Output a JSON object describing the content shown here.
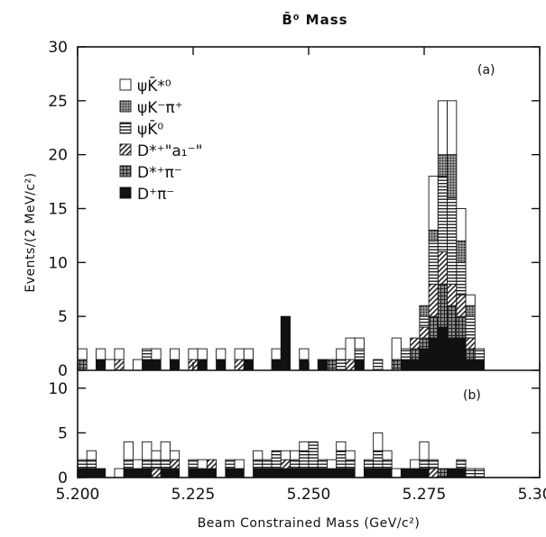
{
  "chart_data": {
    "type": "bar",
    "title": "B̄⁰ Mass",
    "xlabel": "Beam Constrained Mass (GeV/c²)",
    "ylabel": "Events/(2 MeV/c²)",
    "xlim": [
      5.2,
      5.3
    ],
    "x_ticks": [
      "5.200",
      "5.225",
      "5.250",
      "5.275",
      "5.300"
    ],
    "x_tick_values": [
      5.2,
      5.225,
      5.25,
      5.275,
      5.3
    ],
    "bin_width": 0.002,
    "stacked": true,
    "legend": {
      "position": "top-left",
      "entries": [
        "ψK̄*⁰",
        "ψK⁻π⁺",
        "ψK̄⁰",
        "D*⁺\"a₁⁻\"",
        "D*⁺π⁻",
        "D⁺π⁻"
      ]
    },
    "series_styles": [
      {
        "name": "D⁺π⁻",
        "pattern": "solid",
        "color": "#111111"
      },
      {
        "name": "D*⁺π⁻",
        "pattern": "crosshatch",
        "color": "#555555"
      },
      {
        "name": "D*⁺\"a₁⁻\"",
        "pattern": "diagonal",
        "color": "#333333"
      },
      {
        "name": "ψK̄⁰",
        "pattern": "horizontal",
        "color": "#333333"
      },
      {
        "name": "ψK⁻π⁺",
        "pattern": "dots",
        "color": "#444444"
      },
      {
        "name": "ψK̄*⁰",
        "pattern": "open",
        "color": "#ffffff"
      }
    ],
    "panels": [
      {
        "label": "(a)",
        "ylim": [
          0,
          30
        ],
        "y_ticks": [
          "0",
          "5",
          "10",
          "15",
          "20",
          "25",
          "30"
        ],
        "y_tick_values": [
          0,
          5,
          10,
          15,
          20,
          25,
          30
        ],
        "bins": [
          {
            "x": 5.2,
            "counts": [
              0,
              1,
              0,
              0,
              0,
              1
            ]
          },
          {
            "x": 5.204,
            "counts": [
              1,
              0,
              0,
              0,
              0,
              1
            ]
          },
          {
            "x": 5.206,
            "counts": [
              0,
              0,
              0,
              0,
              0,
              1
            ]
          },
          {
            "x": 5.208,
            "counts": [
              0,
              0,
              1,
              0,
              0,
              1
            ]
          },
          {
            "x": 5.212,
            "counts": [
              0,
              0,
              0,
              0,
              0,
              1
            ]
          },
          {
            "x": 5.214,
            "counts": [
              1,
              0,
              0,
              1,
              0,
              0
            ]
          },
          {
            "x": 5.216,
            "counts": [
              1,
              0,
              0,
              0,
              0,
              1
            ]
          },
          {
            "x": 5.22,
            "counts": [
              1,
              0,
              0,
              0,
              0,
              1
            ]
          },
          {
            "x": 5.224,
            "counts": [
              0,
              0,
              1,
              0,
              0,
              1
            ]
          },
          {
            "x": 5.226,
            "counts": [
              1,
              0,
              0,
              0,
              0,
              1
            ]
          },
          {
            "x": 5.23,
            "counts": [
              1,
              0,
              0,
              0,
              0,
              1
            ]
          },
          {
            "x": 5.234,
            "counts": [
              0,
              0,
              1,
              0,
              0,
              1
            ]
          },
          {
            "x": 5.236,
            "counts": [
              1,
              0,
              0,
              0,
              0,
              1
            ]
          },
          {
            "x": 5.242,
            "counts": [
              1,
              0,
              0,
              0,
              0,
              1
            ]
          },
          {
            "x": 5.244,
            "counts": [
              5,
              0,
              0,
              0,
              0,
              0
            ]
          },
          {
            "x": 5.248,
            "counts": [
              1,
              0,
              0,
              0,
              0,
              1
            ]
          },
          {
            "x": 5.252,
            "counts": [
              1,
              0,
              0,
              0,
              0,
              0
            ]
          },
          {
            "x": 5.254,
            "counts": [
              0,
              1,
              0,
              0,
              0,
              0
            ]
          },
          {
            "x": 5.256,
            "counts": [
              0,
              0,
              0,
              1,
              0,
              1
            ]
          },
          {
            "x": 5.258,
            "counts": [
              0,
              0,
              1,
              0,
              0,
              2
            ]
          },
          {
            "x": 5.26,
            "counts": [
              1,
              0,
              0,
              1,
              0,
              1
            ]
          },
          {
            "x": 5.264,
            "counts": [
              0,
              0,
              0,
              1,
              0,
              0
            ]
          },
          {
            "x": 5.268,
            "counts": [
              0,
              1,
              0,
              0,
              0,
              2
            ]
          },
          {
            "x": 5.27,
            "counts": [
              1,
              0,
              0,
              1,
              0,
              0
            ]
          },
          {
            "x": 5.272,
            "counts": [
              1,
              1,
              1,
              0,
              0,
              0
            ]
          },
          {
            "x": 5.274,
            "counts": [
              2,
              1,
              1,
              1,
              1,
              0
            ]
          },
          {
            "x": 5.276,
            "counts": [
              3,
              2,
              3,
              4,
              1,
              5
            ]
          },
          {
            "x": 5.278,
            "counts": [
              4,
              4,
              3,
              7,
              2,
              5
            ]
          },
          {
            "x": 5.28,
            "counts": [
              3,
              3,
              2,
              8,
              4,
              5
            ]
          },
          {
            "x": 5.282,
            "counts": [
              3,
              2,
              2,
              3,
              2,
              3
            ]
          },
          {
            "x": 5.284,
            "counts": [
              1,
              1,
              1,
              2,
              1,
              1
            ]
          },
          {
            "x": 5.286,
            "counts": [
              1,
              0,
              0,
              1,
              0,
              0
            ]
          }
        ]
      },
      {
        "label": "(b)",
        "ylim": [
          0,
          12
        ],
        "y_ticks": [
          "0",
          "5",
          "10"
        ],
        "y_tick_values": [
          0,
          5,
          10
        ],
        "bins": [
          {
            "x": 5.2,
            "counts": [
              1,
              0,
              0,
              1,
              0,
              0
            ]
          },
          {
            "x": 5.202,
            "counts": [
              1,
              0,
              0,
              1,
              0,
              1
            ]
          },
          {
            "x": 5.204,
            "counts": [
              1,
              0,
              0,
              0,
              0,
              0
            ]
          },
          {
            "x": 5.208,
            "counts": [
              0,
              0,
              0,
              0,
              0,
              1
            ]
          },
          {
            "x": 5.21,
            "counts": [
              1,
              0,
              0,
              1,
              0,
              2
            ]
          },
          {
            "x": 5.212,
            "counts": [
              1,
              0,
              0,
              0,
              0,
              1
            ]
          },
          {
            "x": 5.214,
            "counts": [
              1,
              0,
              0,
              1,
              0,
              2
            ]
          },
          {
            "x": 5.216,
            "counts": [
              0,
              0,
              1,
              1,
              0,
              1
            ]
          },
          {
            "x": 5.218,
            "counts": [
              1,
              0,
              0,
              1,
              0,
              2
            ]
          },
          {
            "x": 5.22,
            "counts": [
              1,
              0,
              1,
              0,
              0,
              1
            ]
          },
          {
            "x": 5.224,
            "counts": [
              1,
              0,
              0,
              1,
              0,
              0
            ]
          },
          {
            "x": 5.226,
            "counts": [
              1,
              0,
              0,
              0,
              0,
              1
            ]
          },
          {
            "x": 5.228,
            "counts": [
              1,
              0,
              1,
              0,
              0,
              0
            ]
          },
          {
            "x": 5.232,
            "counts": [
              1,
              0,
              0,
              1,
              0,
              0
            ]
          },
          {
            "x": 5.234,
            "counts": [
              1,
              0,
              0,
              0,
              0,
              1
            ]
          },
          {
            "x": 5.238,
            "counts": [
              1,
              0,
              0,
              1,
              0,
              1
            ]
          },
          {
            "x": 5.24,
            "counts": [
              1,
              0,
              0,
              1,
              0,
              0
            ]
          },
          {
            "x": 5.242,
            "counts": [
              1,
              0,
              0,
              2,
              0,
              0
            ]
          },
          {
            "x": 5.244,
            "counts": [
              1,
              0,
              1,
              0,
              0,
              1
            ]
          },
          {
            "x": 5.246,
            "counts": [
              1,
              0,
              0,
              1,
              0,
              1
            ]
          },
          {
            "x": 5.248,
            "counts": [
              1,
              0,
              0,
              2,
              0,
              1
            ]
          },
          {
            "x": 5.25,
            "counts": [
              1,
              0,
              0,
              3,
              0,
              0
            ]
          },
          {
            "x": 5.252,
            "counts": [
              1,
              0,
              0,
              1,
              0,
              0
            ]
          },
          {
            "x": 5.254,
            "counts": [
              1,
              0,
              0,
              0,
              0,
              1
            ]
          },
          {
            "x": 5.256,
            "counts": [
              1,
              0,
              0,
              2,
              0,
              1
            ]
          },
          {
            "x": 5.258,
            "counts": [
              1,
              0,
              0,
              1,
              0,
              1
            ]
          },
          {
            "x": 5.262,
            "counts": [
              1,
              0,
              0,
              1,
              0,
              0
            ]
          },
          {
            "x": 5.264,
            "counts": [
              1,
              0,
              0,
              2,
              0,
              2
            ]
          },
          {
            "x": 5.266,
            "counts": [
              1,
              0,
              0,
              1,
              0,
              1
            ]
          },
          {
            "x": 5.268,
            "counts": [
              0,
              0,
              0,
              0,
              0,
              1
            ]
          },
          {
            "x": 5.27,
            "counts": [
              1,
              0,
              0,
              0,
              0,
              0
            ]
          },
          {
            "x": 5.272,
            "counts": [
              1,
              0,
              0,
              0,
              0,
              1
            ]
          },
          {
            "x": 5.274,
            "counts": [
              1,
              0,
              0,
              1,
              0,
              2
            ]
          },
          {
            "x": 5.276,
            "counts": [
              0,
              0,
              1,
              1,
              0,
              0
            ]
          },
          {
            "x": 5.278,
            "counts": [
              0,
              1,
              0,
              0,
              0,
              0
            ]
          },
          {
            "x": 5.28,
            "counts": [
              1,
              0,
              0,
              0,
              0,
              0
            ]
          },
          {
            "x": 5.282,
            "counts": [
              1,
              0,
              0,
              1,
              0,
              0
            ]
          },
          {
            "x": 5.284,
            "counts": [
              0,
              0,
              0,
              1,
              0,
              0
            ]
          },
          {
            "x": 5.286,
            "counts": [
              0,
              0,
              0,
              1,
              0,
              0
            ]
          }
        ]
      }
    ]
  }
}
